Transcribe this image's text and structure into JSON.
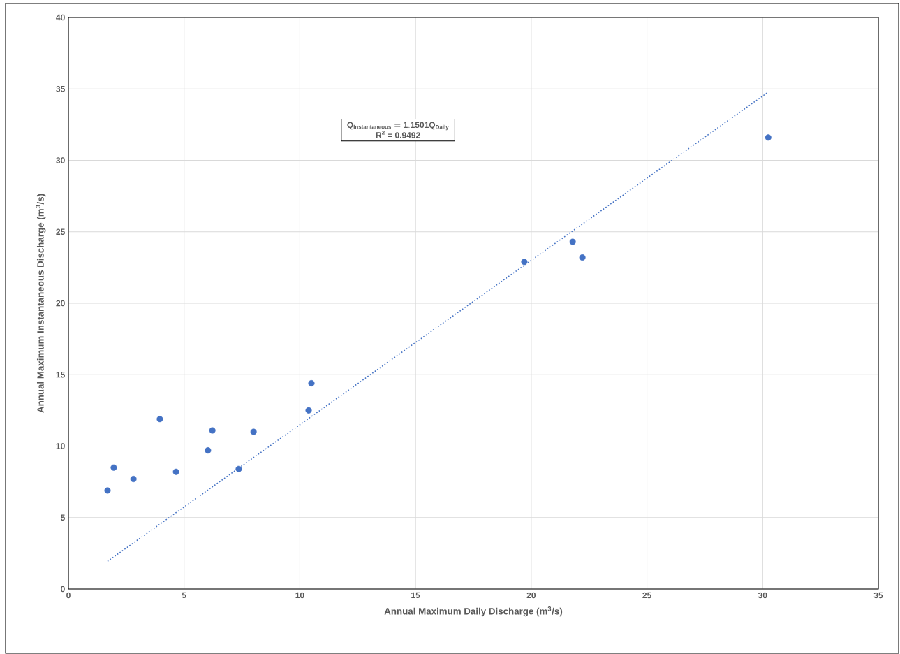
{
  "chart_data": {
    "type": "scatter",
    "xlabel": "Annual Maximum Daily Discharge (m$^{3}$/s)",
    "ylabel": "Annual Maximum Instantaneous Discharge (m$^{3}$/s)",
    "series": [
      {
        "type": "scatter",
        "color": "#4472c4",
        "marker": "circle",
        "x": [
          1.69,
          1.96,
          2.81,
          3.95,
          4.65,
          6.03,
          6.22,
          7.36,
          8.0,
          10.38,
          10.5,
          19.7,
          21.79,
          22.21,
          30.24
        ],
        "values": [
          6.9,
          8.5,
          7.7,
          11.9,
          8.2,
          9.7,
          11.1,
          8.4,
          11.0,
          12.5,
          14.4,
          22.9,
          24.3,
          23.2,
          31.6
        ]
      },
      {
        "type": "line",
        "color": "#4472c4",
        "marker": "none",
        "line_style": "dotted",
        "x": [
          1.69,
          30.24
        ],
        "values": [
          1.94,
          34.78
        ]
      }
    ],
    "annotations": [
      "\\mathbf{Q_{Instantaneous} = 1.1501Q_{Daily}}",
      "R$^{2}$ = 0.9492"
    ],
    "xlim": [
      0,
      35
    ],
    "ylim": [
      0,
      40
    ],
    "xticks": [
      0,
      5,
      10,
      15,
      20,
      25,
      30,
      35
    ],
    "yticks": [
      0,
      5,
      10,
      15,
      20,
      25,
      30,
      35,
      40
    ],
    "grid": true
  }
}
